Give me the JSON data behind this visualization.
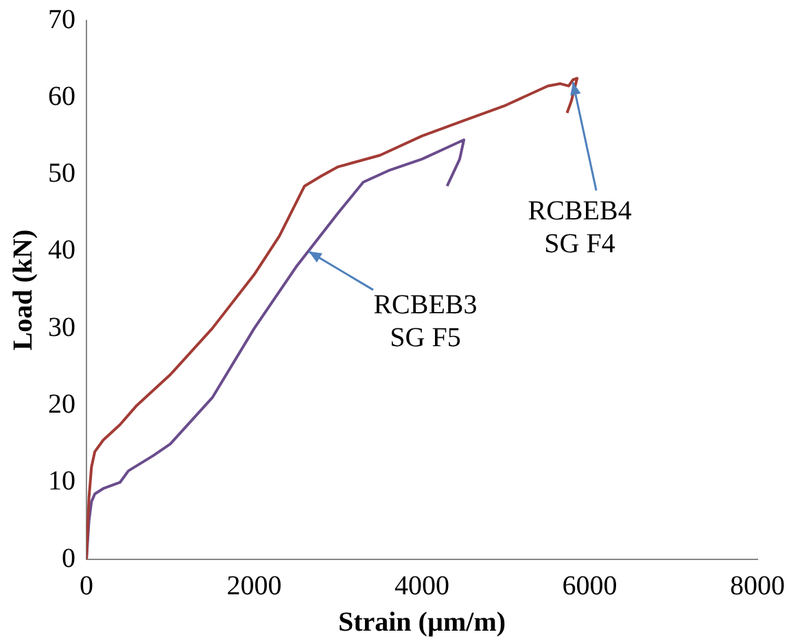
{
  "chart_data": {
    "type": "line",
    "xlabel": "Strain (µm/m)",
    "ylabel": "Load (kN)",
    "xlim": [
      0,
      8000
    ],
    "xticks": [
      0,
      2000,
      4000,
      6000,
      8000
    ],
    "ylim": [
      0,
      70
    ],
    "yticks": [
      0,
      10,
      20,
      30,
      40,
      50,
      60,
      70
    ],
    "grid": false,
    "legend": false,
    "marker": "none",
    "line_style": "solid",
    "series": [
      {
        "color": "#a33b35",
        "x": [
          0,
          30,
          60,
          100,
          200,
          400,
          600,
          800,
          1000,
          1500,
          2000,
          2300,
          2600,
          2800,
          3000,
          3500,
          4000,
          4500,
          5000,
          5500,
          5650,
          5750,
          5800,
          5850,
          5780,
          5730
        ],
        "values": [
          0,
          8,
          12,
          14,
          15.5,
          17.5,
          20,
          22,
          24,
          30,
          37,
          42,
          48.5,
          49.8,
          51,
          52.5,
          55,
          57,
          59,
          61.5,
          61.8,
          61.5,
          62.3,
          62.5,
          59.5,
          58
        ]
      },
      {
        "color": "#6a4c8c",
        "x": [
          0,
          30,
          60,
          100,
          200,
          400,
          500,
          800,
          1000,
          1500,
          2000,
          2500,
          3000,
          3300,
          3600,
          4000,
          4300,
          4500,
          4450,
          4300
        ],
        "values": [
          0,
          5,
          7.5,
          8.5,
          9.2,
          10,
          11.5,
          13.5,
          15,
          21,
          30,
          38,
          45,
          49,
          50.5,
          52,
          53.5,
          54.5,
          52,
          48.5
        ]
      }
    ],
    "annotations": [
      {
        "text": "RCBEB3\nSG F5",
        "x": 2650,
        "y": 40
      },
      {
        "text": "RCBEB4\nSG F4",
        "x": 5800,
        "y": 62
      }
    ]
  }
}
